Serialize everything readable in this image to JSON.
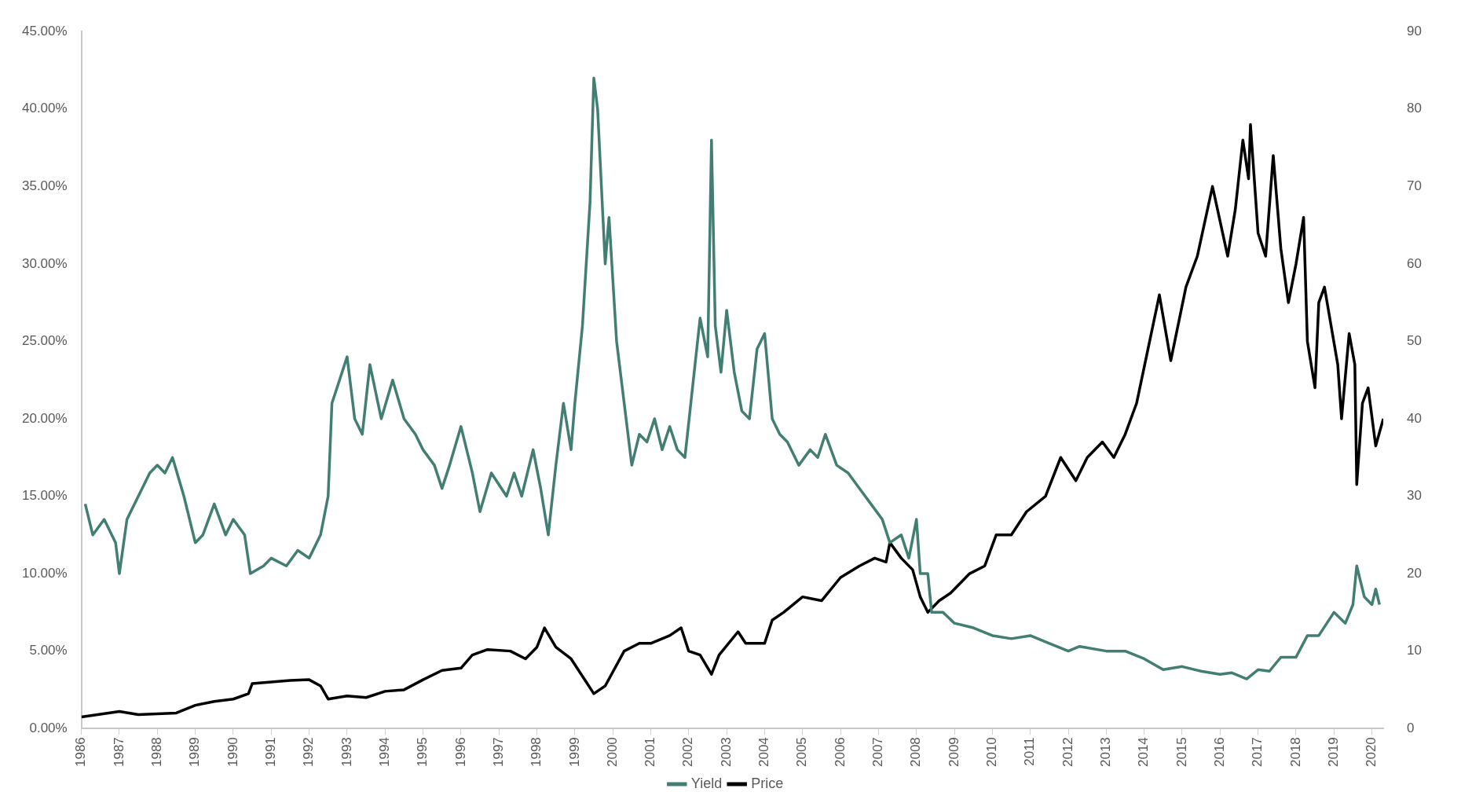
{
  "chart_data": {
    "type": "line",
    "xlim": [
      1986,
      2020.3
    ],
    "xticks": [
      1986,
      1987,
      1988,
      1989,
      1990,
      1991,
      1992,
      1993,
      1994,
      1995,
      1996,
      1997,
      1998,
      1999,
      2000,
      2001,
      2002,
      2003,
      2004,
      2005,
      2006,
      2007,
      2008,
      2009,
      2010,
      2011,
      2012,
      2013,
      2014,
      2015,
      2016,
      2017,
      2018,
      2019,
      2020
    ],
    "ylim": [
      0,
      45
    ],
    "yticks": [
      {
        "value": 0,
        "label": "0.00%"
      },
      {
        "value": 5,
        "label": "5.00%"
      },
      {
        "value": 10,
        "label": "10.00%"
      },
      {
        "value": 15,
        "label": "15.00%"
      },
      {
        "value": 20,
        "label": "20.00%"
      },
      {
        "value": 25,
        "label": "25.00%"
      },
      {
        "value": 30,
        "label": "30.00%"
      },
      {
        "value": 35,
        "label": "35.00%"
      },
      {
        "value": 40,
        "label": "40.00%"
      },
      {
        "value": 45,
        "label": "45.00%"
      }
    ],
    "y2lim": [
      0,
      90
    ],
    "y2ticks": [
      0,
      10,
      20,
      30,
      40,
      50,
      60,
      70,
      80,
      90
    ],
    "grid": false,
    "legend": "bottom",
    "marker": "none",
    "line_style": "solid",
    "series": [
      {
        "name": "Yield",
        "color": "#427e72",
        "axis": "y",
        "x": [
          1986.1,
          1986.3,
          1986.6,
          1986.9,
          1987.0,
          1987.2,
          1987.5,
          1987.8,
          1988.0,
          1988.2,
          1988.4,
          1988.7,
          1989.0,
          1989.2,
          1989.5,
          1989.8,
          1990.0,
          1990.3,
          1990.45,
          1990.8,
          1991.0,
          1991.4,
          1991.7,
          1992.0,
          1992.3,
          1992.5,
          1992.6,
          1992.8,
          1993.0,
          1993.2,
          1993.4,
          1993.6,
          1993.9,
          1994.2,
          1994.5,
          1994.8,
          1995.0,
          1995.3,
          1995.5,
          1995.7,
          1996.0,
          1996.3,
          1996.5,
          1996.8,
          1997.2,
          1997.4,
          1997.6,
          1997.9,
          1998.1,
          1998.3,
          1998.5,
          1998.7,
          1998.9,
          1999.0,
          1999.2,
          1999.4,
          1999.5,
          1999.6,
          1999.8,
          1999.9,
          2000.1,
          2000.3,
          2000.5,
          2000.7,
          2000.9,
          2001.1,
          2001.3,
          2001.5,
          2001.7,
          2001.9,
          2002.1,
          2002.3,
          2002.5,
          2002.6,
          2002.7,
          2002.85,
          2003.0,
          2003.2,
          2003.4,
          2003.6,
          2003.8,
          2004.0,
          2004.2,
          2004.4,
          2004.6,
          2004.9,
          2005.2,
          2005.4,
          2005.6,
          2005.9,
          2006.2,
          2006.5,
          2006.8,
          2007.1,
          2007.3,
          2007.6,
          2007.8,
          2008.0,
          2008.1,
          2008.3,
          2008.4,
          2008.7,
          2009.0,
          2009.5,
          2010.0,
          2010.5,
          2011.0,
          2011.5,
          2012.0,
          2012.3,
          2013.0,
          2013.5,
          2014.0,
          2014.5,
          2015.0,
          2015.5,
          2016.0,
          2016.3,
          2016.7,
          2017.0,
          2017.3,
          2017.6,
          2018.0,
          2018.3,
          2018.6,
          2019.0,
          2019.3,
          2019.5,
          2019.6,
          2019.8,
          2020.0,
          2020.1,
          2020.2
        ],
        "values": [
          14.5,
          12.5,
          13.5,
          12,
          10,
          13.5,
          15,
          16.5,
          17,
          16.5,
          17.5,
          15,
          12,
          12.5,
          14.5,
          12.5,
          13.5,
          12.5,
          10,
          10.5,
          11,
          10.5,
          11.5,
          11,
          12.5,
          15,
          21,
          22.5,
          24,
          20,
          19,
          23.5,
          20,
          22.5,
          20,
          19,
          18,
          17,
          15.5,
          17,
          19.5,
          16.5,
          14,
          16.5,
          15,
          16.5,
          15,
          18,
          15.5,
          12.5,
          17,
          21,
          18,
          21,
          26,
          34,
          42,
          40,
          30,
          33,
          25,
          21,
          17,
          19,
          18.5,
          20,
          18,
          19.5,
          18,
          17.5,
          22,
          26.5,
          24,
          38,
          26,
          23,
          27,
          23,
          20.5,
          20,
          24.5,
          25.5,
          20,
          19,
          18.5,
          17,
          18,
          17.5,
          19,
          17,
          16.5,
          15.5,
          14.5,
          13.5,
          12,
          12.5,
          11,
          13.5,
          10,
          10,
          7.5,
          7.5,
          6.8,
          6.5,
          6,
          5.8,
          6,
          5.5,
          5,
          5.3,
          5,
          5,
          4.5,
          3.8,
          4,
          3.7,
          3.5,
          3.6,
          3.2,
          3.8,
          3.7,
          4.6,
          4.6,
          6,
          6,
          7.5,
          6.8,
          8,
          10.5,
          8.5,
          8,
          9,
          8
        ]
      },
      {
        "name": "Price",
        "color": "#000000",
        "axis": "y2",
        "x": [
          1986.0,
          1987.0,
          1987.5,
          1988.5,
          1989.0,
          1989.5,
          1990.0,
          1990.4,
          1990.5,
          1991.0,
          1991.5,
          1992.0,
          1992.3,
          1992.5,
          1993.0,
          1993.5,
          1994.0,
          1994.5,
          1995.0,
          1995.5,
          1996.0,
          1996.3,
          1996.7,
          1997.3,
          1997.7,
          1998.0,
          1998.2,
          1998.5,
          1998.9,
          1999.3,
          1999.5,
          1999.8,
          2000.3,
          2000.7,
          2001.0,
          2001.5,
          2001.8,
          2002.0,
          2002.3,
          2002.6,
          2002.8,
          2003.3,
          2003.5,
          2004.0,
          2004.2,
          2004.5,
          2005.0,
          2005.5,
          2006.0,
          2006.5,
          2006.9,
          2007.2,
          2007.3,
          2007.6,
          2007.9,
          2008.1,
          2008.3,
          2008.6,
          2008.9,
          2009.4,
          2009.8,
          2010.1,
          2010.5,
          2010.9,
          2011.4,
          2011.8,
          2012.2,
          2012.5,
          2012.9,
          2013.2,
          2013.5,
          2013.8,
          2014.4,
          2014.7,
          2015.1,
          2015.4,
          2015.8,
          2016.2,
          2016.4,
          2016.6,
          2016.75,
          2016.8,
          2017.0,
          2017.2,
          2017.4,
          2017.6,
          2017.8,
          2018.0,
          2018.2,
          2018.3,
          2018.5,
          2018.6,
          2018.75,
          2019.1,
          2019.2,
          2019.4,
          2019.55,
          2019.6,
          2019.75,
          2019.9,
          2020.1,
          2020.3
        ],
        "values": [
          1.5,
          2.2,
          1.8,
          2,
          3,
          3.5,
          3.8,
          4.5,
          5.8,
          6,
          6.2,
          6.3,
          5.5,
          3.8,
          4.2,
          4,
          4.8,
          5,
          6.3,
          7.5,
          7.8,
          9.5,
          10.2,
          10,
          9,
          10.5,
          13,
          10.5,
          9,
          6,
          4.5,
          5.5,
          10,
          11,
          11,
          12,
          13,
          10,
          9.5,
          7,
          9.5,
          12.5,
          11,
          11,
          14,
          15,
          17,
          16.5,
          19.5,
          21,
          22,
          21.5,
          24,
          22,
          20.5,
          17,
          15,
          16.5,
          17.5,
          20,
          21,
          25,
          25,
          28,
          30,
          35,
          32,
          35,
          37,
          35,
          38,
          42,
          56,
          47.5,
          57,
          61,
          70,
          61,
          67,
          76,
          71,
          78,
          64,
          61,
          74,
          62,
          55,
          60,
          66,
          50,
          44,
          55,
          57,
          47,
          40,
          51,
          47,
          31.5,
          42,
          44,
          36.5,
          40
        ]
      }
    ]
  }
}
